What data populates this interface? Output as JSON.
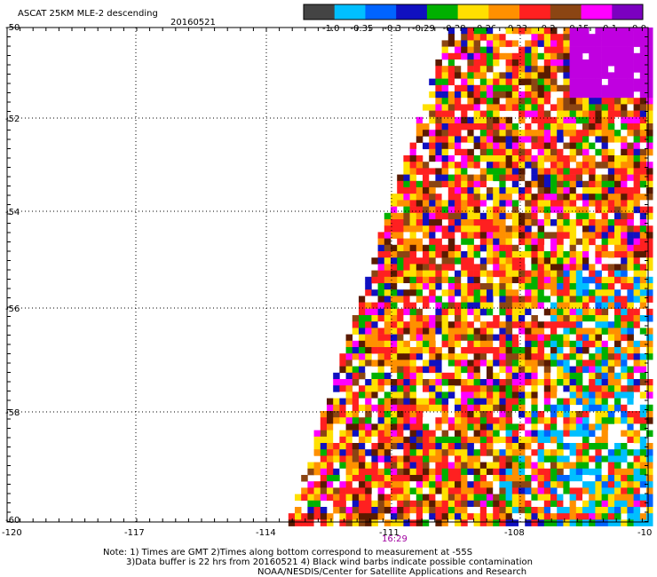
{
  "header": {
    "title": "ASCAT 25KM MLE-2 descending",
    "date": "20160521"
  },
  "colorbar": {
    "colors": [
      "#444444",
      "#00bfff",
      "#0064ff",
      "#1010c0",
      "#00b000",
      "#ffe000",
      "#ff9000",
      "#ff2020",
      "#8b4513",
      "#ff00ff",
      "#7b00c0"
    ],
    "labels": [
      "-1.0",
      "-0.35",
      "-0.3",
      "-0.29",
      "-0.28",
      "-0.26",
      "-0.23",
      "-0.2",
      "-0.15",
      "-0.1",
      "0.0"
    ]
  },
  "axes": {
    "lon_ticks": [
      "-120",
      "-117",
      "-114",
      "-111",
      "-108",
      "-10"
    ],
    "lat_ticks": [
      "-50",
      "-52",
      "-54",
      "-56",
      "-58",
      "-60"
    ],
    "time_label": "16:29"
  },
  "notes": [
    "Note: 1) Times are GMT 2)Times along bottom correspond to measurement at -55S",
    "3)Data buffer is 22 hrs from 20160521 4) Black wind barbs indicate possible contamination",
    "NOAA/NESDIS/Center for Satellite Applications and Research"
  ]
}
